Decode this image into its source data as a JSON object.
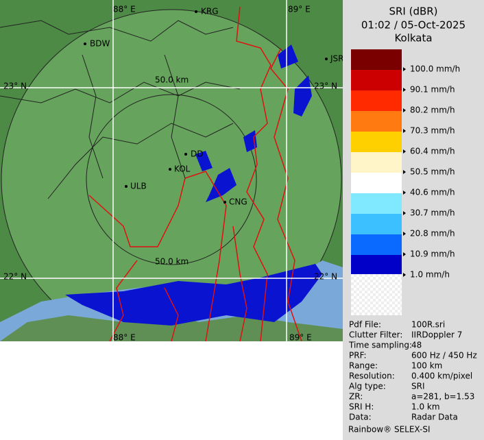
{
  "map": {
    "labels": [
      "88° E",
      "89° E",
      "23° N",
      "23° N",
      "22° N",
      "22° N",
      "88° E",
      "89° E",
      "KRG",
      "BDW",
      "JSR",
      "50.0 km",
      "50.0 km",
      "DD",
      "KOL",
      "ULB",
      "CNG"
    ]
  },
  "panel": {
    "title": "SRI (dBR)",
    "datetime": "01:02 / 05-Oct-2025",
    "station": "Kolkata"
  },
  "legend": {
    "items": [
      "100.0 mm/h",
      "90.1 mm/h",
      "80.2 mm/h",
      "70.3 mm/h",
      "60.4 mm/h",
      "50.5 mm/h",
      "40.6 mm/h",
      "30.7 mm/h",
      "20.8 mm/h",
      "10.9 mm/h",
      "1.0 mm/h"
    ]
  },
  "info": {
    "rows": [
      [
        "Pdf File:",
        "100R.sri"
      ],
      [
        "Clutter Filter:",
        "IIRDoppler 7"
      ],
      [
        "Time sampling:",
        "48"
      ],
      [
        "PRF:",
        "600 Hz / 450 Hz"
      ],
      [
        "Range:",
        "100 km"
      ],
      [
        "Resolution:",
        "0.400 km/pixel"
      ],
      [
        "Alg type:",
        "SRI"
      ],
      [
        "ZR:",
        "a=281, b=1.53"
      ],
      [
        "SRI H:",
        "1.0 km"
      ],
      [
        "Data:",
        "Radar Data"
      ]
    ]
  },
  "footer": "Rainbow® SELEX-SI"
}
